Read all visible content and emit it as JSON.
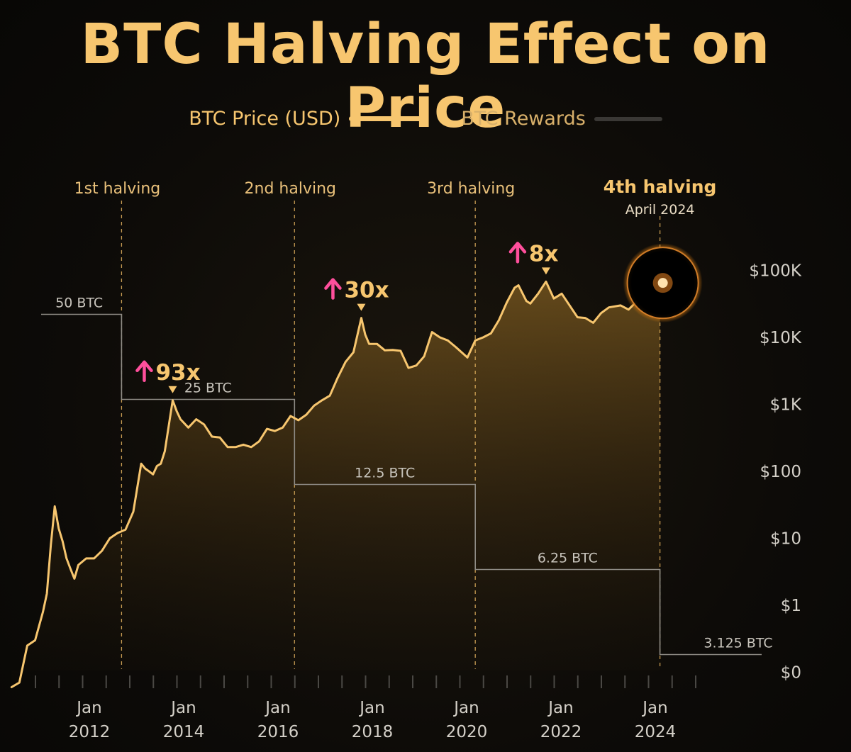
{
  "title": "BTC Halving Effect on Price",
  "legend": {
    "price_label": "BTC Price (USD)",
    "rewards_label": "BTC Rewards"
  },
  "colors": {
    "price_line": "#f7c66f",
    "price_area": "#f7c66f",
    "reward_line": "#8f8c86",
    "halving_line": "#e6b45f",
    "arrow": "#ff4f9c",
    "axis_text": "#d8d4cc",
    "title": "#f7c66f"
  },
  "chart_data": {
    "type": "line",
    "scale": "log",
    "y_ticks": [
      "$0",
      "$1",
      "$10",
      "$100",
      "$1K",
      "$10K",
      "$100K"
    ],
    "x_ticks": [
      {
        "date": "2012-01",
        "line1": "Jan",
        "line2": "2012"
      },
      {
        "date": "2014-01",
        "line1": "Jan",
        "line2": "2014"
      },
      {
        "date": "2016-01",
        "line1": "Jan",
        "line2": "2016"
      },
      {
        "date": "2018-01",
        "line1": "Jan",
        "line2": "2018"
      },
      {
        "date": "2020-01",
        "line1": "Jan",
        "line2": "2020"
      },
      {
        "date": "2022-01",
        "line1": "Jan",
        "line2": "2022"
      },
      {
        "date": "2024-01",
        "line1": "Jan",
        "line2": "2024"
      }
    ],
    "halvings": [
      {
        "label": "1st halving",
        "date": "2012-11"
      },
      {
        "label": "2nd halving",
        "date": "2016-07"
      },
      {
        "label": "3rd halving",
        "date": "2020-05"
      },
      {
        "label": "4th halving",
        "sublabel": "April 2024",
        "date": "2024-04"
      }
    ],
    "rewards": [
      {
        "label": "50 BTC",
        "btc": 50,
        "from": "2010-09",
        "to": "2012-11"
      },
      {
        "label": "25 BTC",
        "btc": 25,
        "from": "2012-11",
        "to": "2016-07"
      },
      {
        "label": "12.5 BTC",
        "btc": 12.5,
        "from": "2016-07",
        "to": "2020-05"
      },
      {
        "label": "6.25 BTC",
        "btc": 6.25,
        "from": "2020-05",
        "to": "2024-04"
      },
      {
        "label": "3.125 BTC",
        "btc": 3.125,
        "from": "2024-04",
        "to": "2026-03"
      }
    ],
    "peaks": [
      {
        "label": "93x",
        "date": "2013-12",
        "price": 1150
      },
      {
        "label": "30x",
        "date": "2017-12",
        "price": 19500
      },
      {
        "label": "8x",
        "date": "2021-11",
        "price": 68000
      }
    ],
    "series": [
      {
        "name": "BTC Price (USD)",
        "points": [
          [
            "2010-07",
            0.06
          ],
          [
            "2010-09",
            0.07
          ],
          [
            "2010-11",
            0.25
          ],
          [
            "2011-01",
            0.3
          ],
          [
            "2011-03",
            0.8
          ],
          [
            "2011-04",
            1.5
          ],
          [
            "2011-05",
            8
          ],
          [
            "2011-06",
            30
          ],
          [
            "2011-07",
            14
          ],
          [
            "2011-08",
            9
          ],
          [
            "2011-09",
            5
          ],
          [
            "2011-10",
            3.5
          ],
          [
            "2011-11",
            2.5
          ],
          [
            "2011-12",
            4
          ],
          [
            "2012-02",
            5
          ],
          [
            "2012-04",
            5
          ],
          [
            "2012-06",
            6.5
          ],
          [
            "2012-08",
            10
          ],
          [
            "2012-10",
            12
          ],
          [
            "2012-12",
            13.5
          ],
          [
            "2013-02",
            25
          ],
          [
            "2013-04",
            130
          ],
          [
            "2013-05",
            110
          ],
          [
            "2013-06",
            100
          ],
          [
            "2013-07",
            90
          ],
          [
            "2013-08",
            120
          ],
          [
            "2013-09",
            130
          ],
          [
            "2013-10",
            200
          ],
          [
            "2013-12",
            1150
          ],
          [
            "2014-01",
            800
          ],
          [
            "2014-02",
            600
          ],
          [
            "2014-04",
            450
          ],
          [
            "2014-06",
            600
          ],
          [
            "2014-08",
            500
          ],
          [
            "2014-10",
            330
          ],
          [
            "2014-12",
            320
          ],
          [
            "2015-02",
            230
          ],
          [
            "2015-04",
            230
          ],
          [
            "2015-06",
            250
          ],
          [
            "2015-08",
            230
          ],
          [
            "2015-10",
            280
          ],
          [
            "2015-12",
            430
          ],
          [
            "2016-02",
            400
          ],
          [
            "2016-04",
            450
          ],
          [
            "2016-06",
            670
          ],
          [
            "2016-08",
            580
          ],
          [
            "2016-10",
            700
          ],
          [
            "2016-12",
            960
          ],
          [
            "2017-02",
            1150
          ],
          [
            "2017-04",
            1350
          ],
          [
            "2017-06",
            2500
          ],
          [
            "2017-08",
            4300
          ],
          [
            "2017-10",
            6000
          ],
          [
            "2017-12",
            19500
          ],
          [
            "2018-01",
            11000
          ],
          [
            "2018-02",
            8000
          ],
          [
            "2018-04",
            8000
          ],
          [
            "2018-06",
            6400
          ],
          [
            "2018-08",
            6500
          ],
          [
            "2018-10",
            6300
          ],
          [
            "2018-12",
            3500
          ],
          [
            "2019-02",
            3800
          ],
          [
            "2019-04",
            5200
          ],
          [
            "2019-06",
            12000
          ],
          [
            "2019-08",
            10000
          ],
          [
            "2019-10",
            9000
          ],
          [
            "2019-12",
            7200
          ],
          [
            "2020-03",
            5000
          ],
          [
            "2020-05",
            9000
          ],
          [
            "2020-07",
            10000
          ],
          [
            "2020-09",
            11500
          ],
          [
            "2020-11",
            18000
          ],
          [
            "2021-01",
            33000
          ],
          [
            "2021-03",
            55000
          ],
          [
            "2021-04",
            60000
          ],
          [
            "2021-06",
            35000
          ],
          [
            "2021-07",
            32000
          ],
          [
            "2021-09",
            45000
          ],
          [
            "2021-11",
            68000
          ],
          [
            "2022-01",
            38000
          ],
          [
            "2022-03",
            45000
          ],
          [
            "2022-05",
            30000
          ],
          [
            "2022-07",
            20000
          ],
          [
            "2022-09",
            19500
          ],
          [
            "2022-11",
            16500
          ],
          [
            "2023-01",
            23000
          ],
          [
            "2023-03",
            28000
          ],
          [
            "2023-06",
            30000
          ],
          [
            "2023-08",
            26000
          ],
          [
            "2023-10",
            34000
          ],
          [
            "2023-12",
            42000
          ],
          [
            "2024-02",
            52000
          ],
          [
            "2024-03",
            70000
          ],
          [
            "2024-04",
            65000
          ]
        ]
      }
    ]
  }
}
